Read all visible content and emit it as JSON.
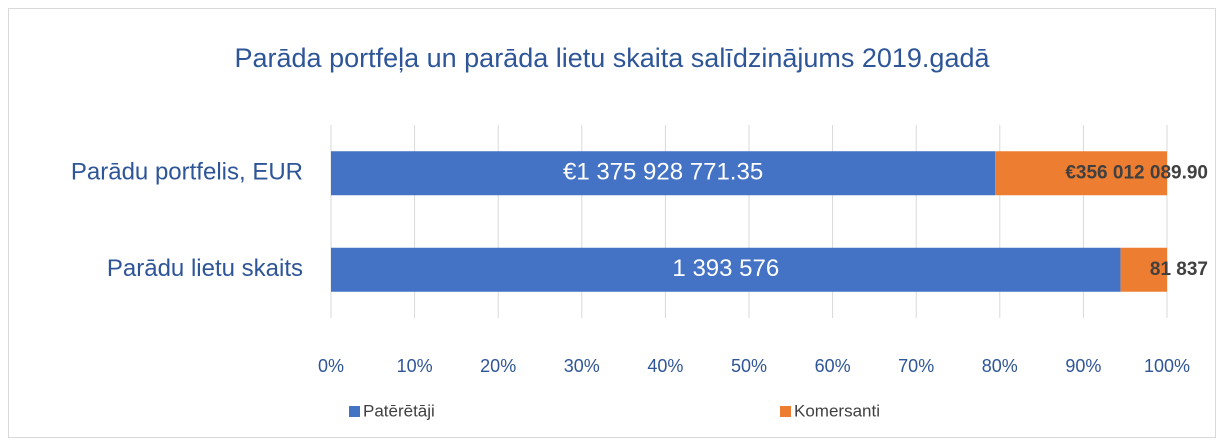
{
  "chart_data": {
    "type": "bar",
    "orientation": "horizontal",
    "stacking": "percent",
    "title": "Parāda portfeļa un parāda lietu  skaita salīdzinājums 2019.gadā",
    "categories": [
      "Parādu portfelis, EUR",
      "Parādu lietu skaits"
    ],
    "series": [
      {
        "name": "Patērētāji",
        "color": "#4472c4",
        "values": [
          1375928771.35,
          1393576
        ],
        "value_labels": [
          "€1 375 928 771.35",
          "1 393 576"
        ]
      },
      {
        "name": "Komersanti",
        "color": "#ed7d31",
        "values": [
          356012089.9,
          81837
        ],
        "value_labels": [
          "€356 012 089.90",
          "81 837"
        ]
      }
    ],
    "xlim": [
      0,
      100
    ],
    "xticks": [
      {
        "value": 0,
        "label": "0%"
      },
      {
        "value": 10,
        "label": "10%"
      },
      {
        "value": 20,
        "label": "20%"
      },
      {
        "value": 30,
        "label": "30%"
      },
      {
        "value": 40,
        "label": "40%"
      },
      {
        "value": 50,
        "label": "50%"
      },
      {
        "value": 60,
        "label": "60%"
      },
      {
        "value": 70,
        "label": "70%"
      },
      {
        "value": 80,
        "label": "80%"
      },
      {
        "value": 90,
        "label": "90%"
      },
      {
        "value": 100,
        "label": "100%"
      }
    ],
    "grid": true,
    "legend": "bottom"
  }
}
